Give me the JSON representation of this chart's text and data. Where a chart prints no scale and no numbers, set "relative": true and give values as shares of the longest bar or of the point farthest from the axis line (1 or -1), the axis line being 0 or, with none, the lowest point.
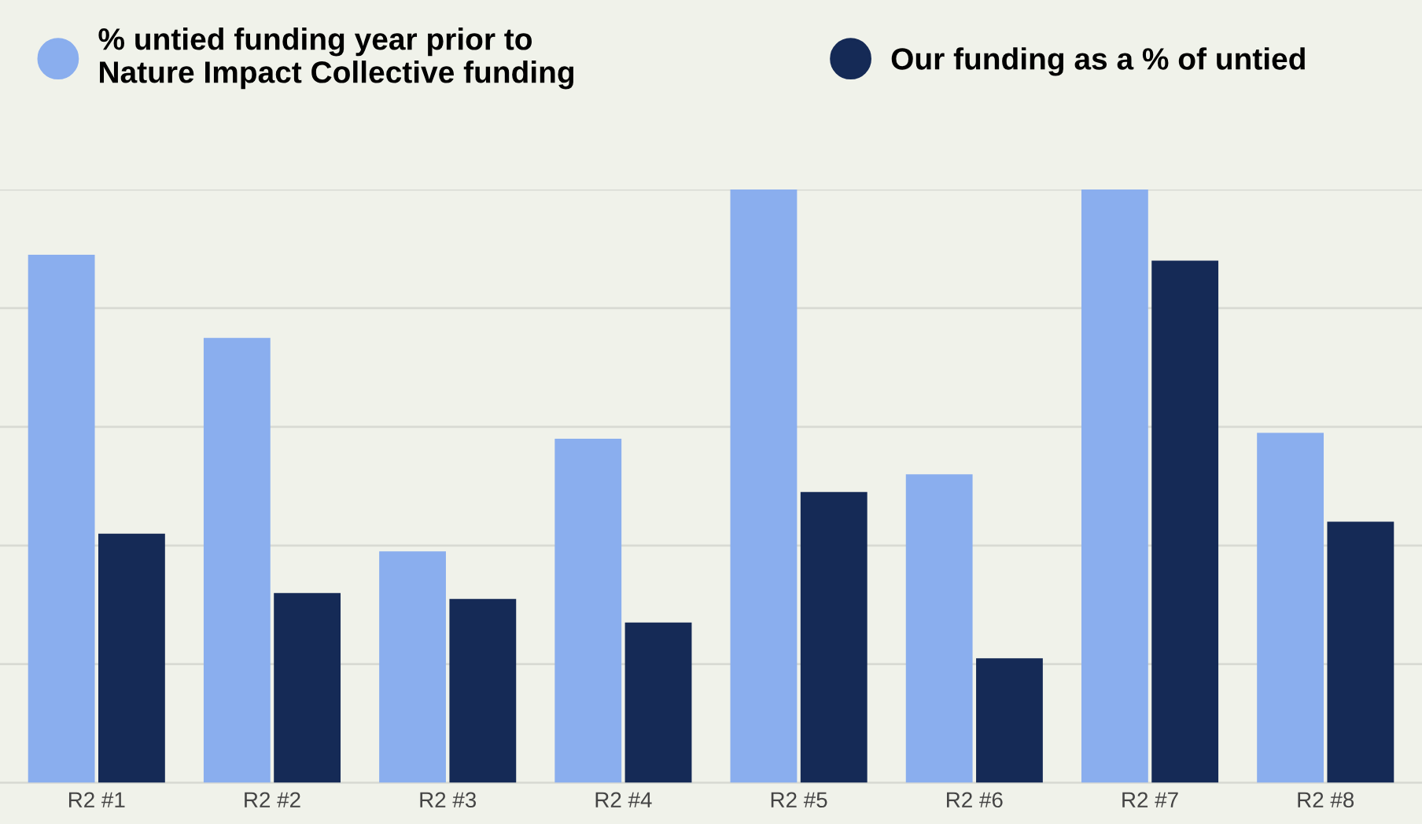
{
  "chart_data": {
    "type": "bar",
    "relative": true,
    "grid": "y",
    "legend": "top left",
    "categories": [
      "R2 #1",
      "R2 #2",
      "R2 #3",
      "R2 #4",
      "R2 #5",
      "R2 #6",
      "R2 #7",
      "R2 #8"
    ],
    "series": [
      {
        "name": "% untied funding year prior to\nNature Impact Collective funding",
        "color": "#8aaeee",
        "values": [
          0.89,
          0.75,
          0.39,
          0.58,
          1,
          0.52,
          1,
          0.59
        ]
      },
      {
        "name": "Our funding as a % of untied",
        "color": "#152a56",
        "values": [
          0.42,
          0.32,
          0.31,
          0.27,
          0.49,
          0.21,
          0.88,
          0.44
        ]
      }
    ]
  }
}
